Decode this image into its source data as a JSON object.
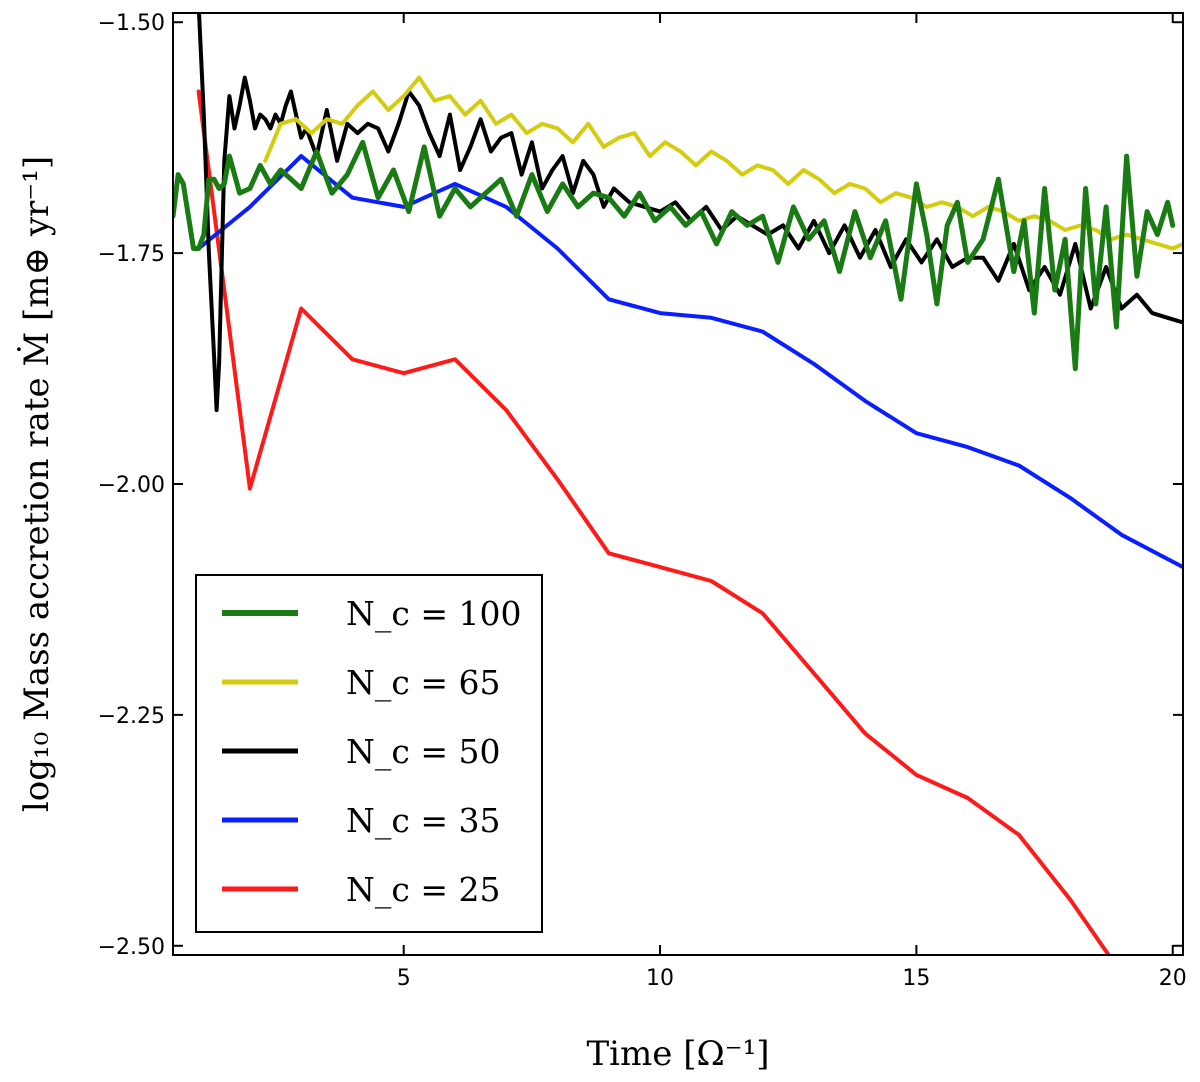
{
  "chart_data": {
    "type": "line",
    "xlabel": "Time [Ω⁻¹]",
    "ylabel": "log₁₀ Mass accretion rate Ṁ [m⊕ yr⁻¹]",
    "xlim": [
      0.5,
      20.2
    ],
    "ylim": [
      -2.51,
      -1.49
    ],
    "xticks": [
      5,
      10,
      15,
      20
    ],
    "xtick_labels": [
      "5",
      "10",
      "15",
      "20"
    ],
    "yticks": [
      -1.5,
      -1.75,
      -2.0,
      -2.25,
      -2.5
    ],
    "ytick_labels": [
      "−1.50",
      "−1.75",
      "−2.00",
      "−2.25",
      "−2.50"
    ],
    "grid": false,
    "legend_position": "lower-left",
    "series": [
      {
        "name": "N_c = 100",
        "color": "#1a7a14",
        "x": [
          0.5,
          0.6,
          0.7,
          0.8,
          0.9,
          1.0,
          1.1,
          1.2,
          1.3,
          1.4,
          1.5,
          1.6,
          1.8,
          2.0,
          2.2,
          2.4,
          2.6,
          2.8,
          3.0,
          3.3,
          3.6,
          3.9,
          4.2,
          4.5,
          4.8,
          5.1,
          5.4,
          5.7,
          6.0,
          6.3,
          6.6,
          6.9,
          7.2,
          7.5,
          7.8,
          8.1,
          8.4,
          8.7,
          9.0,
          9.3,
          9.6,
          9.9,
          10.2,
          10.5,
          10.8,
          11.1,
          11.4,
          11.7,
          12.0,
          12.3,
          12.6,
          12.9,
          13.2,
          13.5,
          13.8,
          14.1,
          14.4,
          14.7,
          15.0,
          15.2,
          15.4,
          15.6,
          15.8,
          16.0,
          16.3,
          16.6,
          16.9,
          17.1,
          17.3,
          17.5,
          17.7,
          17.9,
          18.1,
          18.3,
          18.5,
          18.7,
          18.9,
          19.1,
          19.3,
          19.5,
          19.7,
          19.9,
          20.0
        ],
        "values": [
          -1.71,
          -1.665,
          -1.675,
          -1.71,
          -1.745,
          -1.745,
          -1.73,
          -1.67,
          -1.67,
          -1.68,
          -1.675,
          -1.645,
          -1.685,
          -1.68,
          -1.655,
          -1.675,
          -1.66,
          -1.67,
          -1.68,
          -1.64,
          -1.685,
          -1.665,
          -1.63,
          -1.69,
          -1.66,
          -1.705,
          -1.635,
          -1.71,
          -1.68,
          -1.7,
          -1.685,
          -1.67,
          -1.71,
          -1.665,
          -1.705,
          -1.675,
          -1.7,
          -1.685,
          -1.69,
          -1.71,
          -1.685,
          -1.715,
          -1.7,
          -1.72,
          -1.705,
          -1.74,
          -1.705,
          -1.72,
          -1.71,
          -1.76,
          -1.7,
          -1.735,
          -1.715,
          -1.77,
          -1.705,
          -1.755,
          -1.715,
          -1.8,
          -1.675,
          -1.73,
          -1.805,
          -1.72,
          -1.695,
          -1.76,
          -1.735,
          -1.67,
          -1.77,
          -1.715,
          -1.815,
          -1.68,
          -1.79,
          -1.735,
          -1.875,
          -1.68,
          -1.805,
          -1.7,
          -1.83,
          -1.645,
          -1.775,
          -1.705,
          -1.73,
          -1.695,
          -1.72
        ]
      },
      {
        "name": "N_c = 65",
        "color": "#d4cc10",
        "x": [
          2.3,
          2.6,
          2.9,
          3.2,
          3.5,
          3.8,
          4.1,
          4.4,
          4.7,
          5.0,
          5.3,
          5.6,
          5.9,
          6.2,
          6.5,
          6.8,
          7.1,
          7.4,
          7.7,
          8.0,
          8.3,
          8.6,
          8.9,
          9.2,
          9.5,
          9.8,
          10.1,
          10.4,
          10.7,
          11.0,
          11.3,
          11.6,
          11.9,
          12.2,
          12.5,
          12.8,
          13.1,
          13.4,
          13.7,
          14.0,
          14.3,
          14.6,
          14.9,
          15.2,
          15.5,
          15.8,
          16.1,
          16.4,
          16.7,
          17.0,
          17.3,
          17.6,
          17.9,
          18.2,
          18.5,
          18.8,
          19.1,
          19.4,
          19.7,
          20.0,
          20.2
        ],
        "values": [
          -1.65,
          -1.61,
          -1.605,
          -1.62,
          -1.605,
          -1.61,
          -1.59,
          -1.575,
          -1.595,
          -1.58,
          -1.56,
          -1.585,
          -1.58,
          -1.6,
          -1.585,
          -1.61,
          -1.6,
          -1.62,
          -1.61,
          -1.615,
          -1.63,
          -1.61,
          -1.635,
          -1.625,
          -1.62,
          -1.645,
          -1.63,
          -1.64,
          -1.655,
          -1.64,
          -1.65,
          -1.665,
          -1.655,
          -1.66,
          -1.675,
          -1.66,
          -1.67,
          -1.685,
          -1.675,
          -1.68,
          -1.695,
          -1.685,
          -1.69,
          -1.7,
          -1.695,
          -1.7,
          -1.71,
          -1.7,
          -1.705,
          -1.715,
          -1.71,
          -1.715,
          -1.725,
          -1.72,
          -1.725,
          -1.735,
          -1.73,
          -1.735,
          -1.74,
          -1.745,
          -1.74
        ]
      },
      {
        "name": "N_c = 50",
        "color": "#000000",
        "x": [
          1.0,
          1.1,
          1.2,
          1.3,
          1.35,
          1.4,
          1.45,
          1.5,
          1.6,
          1.7,
          1.8,
          1.9,
          2.0,
          2.1,
          2.2,
          2.3,
          2.4,
          2.5,
          2.6,
          2.7,
          2.8,
          2.9,
          3.0,
          3.1,
          3.3,
          3.5,
          3.7,
          3.9,
          4.1,
          4.3,
          4.5,
          4.7,
          4.9,
          5.1,
          5.3,
          5.5,
          5.7,
          5.9,
          6.1,
          6.3,
          6.5,
          6.7,
          6.9,
          7.1,
          7.3,
          7.5,
          7.7,
          7.9,
          8.1,
          8.3,
          8.5,
          8.7,
          8.9,
          9.1,
          9.4,
          9.7,
          10.0,
          10.3,
          10.6,
          10.9,
          11.2,
          11.5,
          11.8,
          12.1,
          12.4,
          12.7,
          13.0,
          13.3,
          13.6,
          13.9,
          14.2,
          14.5,
          14.8,
          15.1,
          15.4,
          15.7,
          16.0,
          16.3,
          16.6,
          16.9,
          17.2,
          17.5,
          17.8,
          18.1,
          18.4,
          18.7,
          19.0,
          19.3,
          19.6,
          19.9,
          20.2
        ],
        "values": [
          -1.48,
          -1.6,
          -1.75,
          -1.86,
          -1.92,
          -1.87,
          -1.76,
          -1.65,
          -1.58,
          -1.615,
          -1.59,
          -1.56,
          -1.585,
          -1.615,
          -1.6,
          -1.605,
          -1.615,
          -1.6,
          -1.61,
          -1.59,
          -1.575,
          -1.6,
          -1.625,
          -1.615,
          -1.645,
          -1.595,
          -1.65,
          -1.61,
          -1.62,
          -1.61,
          -1.615,
          -1.64,
          -1.61,
          -1.575,
          -1.59,
          -1.62,
          -1.645,
          -1.6,
          -1.66,
          -1.635,
          -1.605,
          -1.64,
          -1.625,
          -1.62,
          -1.665,
          -1.63,
          -1.68,
          -1.66,
          -1.645,
          -1.685,
          -1.65,
          -1.665,
          -1.7,
          -1.68,
          -1.695,
          -1.7,
          -1.705,
          -1.695,
          -1.715,
          -1.7,
          -1.725,
          -1.71,
          -1.72,
          -1.73,
          -1.72,
          -1.745,
          -1.715,
          -1.75,
          -1.72,
          -1.755,
          -1.725,
          -1.765,
          -1.735,
          -1.76,
          -1.735,
          -1.765,
          -1.755,
          -1.755,
          -1.78,
          -1.74,
          -1.79,
          -1.765,
          -1.795,
          -1.74,
          -1.81,
          -1.765,
          -1.81,
          -1.795,
          -1.815,
          -1.82,
          -1.825
        ]
      },
      {
        "name": "N_c = 35",
        "color": "#0a1fff",
        "x": [
          1.0,
          2.0,
          3.0,
          4.0,
          5.0,
          6.0,
          7.0,
          8.0,
          9.0,
          10.0,
          11.0,
          12.0,
          13.0,
          14.0,
          15.0,
          16.0,
          17.0,
          18.0,
          19.0,
          20.2
        ],
        "values": [
          -1.745,
          -1.7,
          -1.645,
          -1.69,
          -1.7,
          -1.675,
          -1.7,
          -1.745,
          -1.8,
          -1.815,
          -1.82,
          -1.835,
          -1.87,
          -1.91,
          -1.945,
          -1.96,
          -1.98,
          -2.015,
          -2.055,
          -2.09
        ]
      },
      {
        "name": "N_c = 25",
        "color": "#ff1a1a",
        "x": [
          1.0,
          2.0,
          3.0,
          4.0,
          5.0,
          6.0,
          7.0,
          8.0,
          9.0,
          10.0,
          11.0,
          12.0,
          13.0,
          14.0,
          15.0,
          16.0,
          17.0,
          18.0,
          19.0,
          20.2
        ],
        "values": [
          -1.575,
          -2.005,
          -1.81,
          -1.865,
          -1.88,
          -1.865,
          -1.92,
          -1.995,
          -2.075,
          -2.09,
          -2.105,
          -2.14,
          -2.205,
          -2.27,
          -2.315,
          -2.34,
          -2.38,
          -2.45,
          -2.53,
          -2.6
        ]
      }
    ]
  }
}
